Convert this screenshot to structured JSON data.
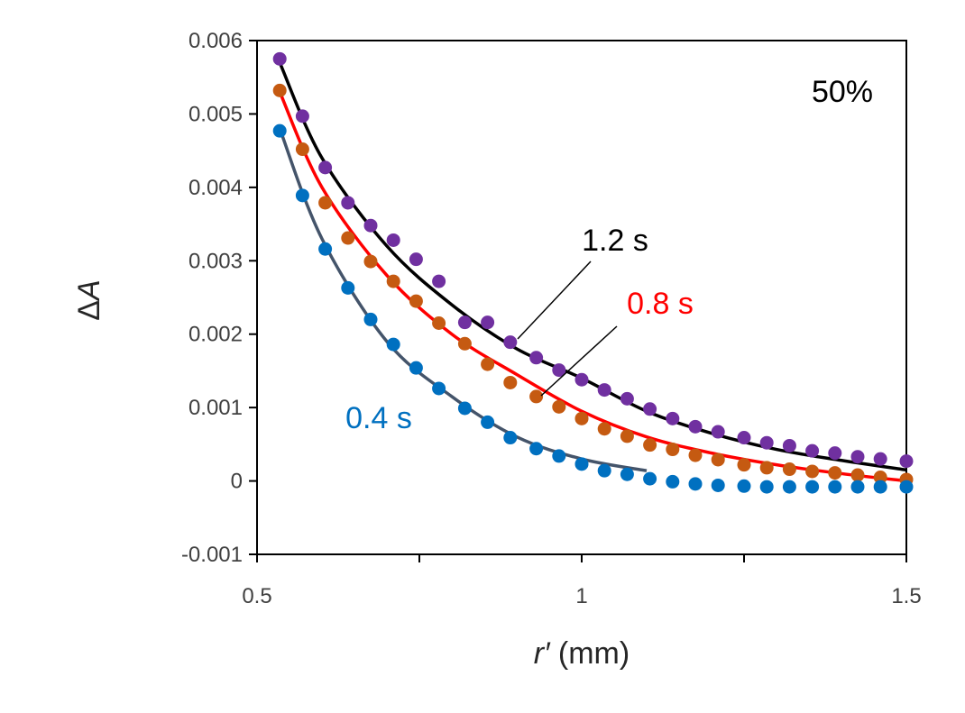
{
  "chart_data": {
    "type": "scatter",
    "title": "",
    "corner_label": "50%",
    "xlabel": {
      "italic": "r′",
      "rest": " (mm)"
    },
    "ylabel": "ΔA",
    "xlim": [
      0.5,
      1.5
    ],
    "ylim": [
      -0.001,
      0.006
    ],
    "x_ticks": [
      0.5,
      1,
      1.5
    ],
    "x_tick_labels": [
      "0.5",
      "1",
      "1.5"
    ],
    "x_minor_ticks": [
      0.75,
      1.25
    ],
    "y_ticks": [
      -0.001,
      0,
      0.001,
      0.002,
      0.003,
      0.004,
      0.005,
      0.006
    ],
    "y_tick_labels": [
      "-0.001",
      "0",
      "0.001",
      "0.002",
      "0.003",
      "0.004",
      "0.005",
      "0.006"
    ],
    "grid": false,
    "series": [
      {
        "name": "1.2 s",
        "marker_color": "#7030A0",
        "fit_color": "#000000",
        "label_color": "#000000",
        "x": [
          0.535,
          0.57,
          0.605,
          0.64,
          0.675,
          0.71,
          0.745,
          0.78,
          0.82,
          0.855,
          0.89,
          0.93,
          0.965,
          1.0,
          1.035,
          1.07,
          1.105,
          1.14,
          1.175,
          1.21,
          1.25,
          1.285,
          1.32,
          1.355,
          1.39,
          1.425,
          1.46,
          1.5
        ],
        "y": [
          0.00575,
          0.00497,
          0.00427,
          0.00379,
          0.00348,
          0.00328,
          0.00302,
          0.00272,
          0.00216,
          0.00216,
          0.00189,
          0.00168,
          0.00151,
          0.00138,
          0.00124,
          0.00112,
          0.00098,
          0.00085,
          0.00074,
          0.00067,
          0.00059,
          0.00052,
          0.00048,
          0.00041,
          0.00038,
          0.00033,
          0.0003,
          0.00027
        ],
        "fit": {
          "x": [
            0.535,
            0.6,
            0.7,
            0.8,
            0.9,
            1.0,
            1.1,
            1.2,
            1.3,
            1.4,
            1.5
          ],
          "y": [
            0.0057,
            0.0044,
            0.0032,
            0.0024,
            0.0018,
            0.0014,
            0.00095,
            0.00065,
            0.00043,
            0.00028,
            0.00015
          ]
        }
      },
      {
        "name": "0.8 s",
        "marker_color": "#C55A11",
        "fit_color": "#FF0000",
        "label_color": "#FF0000",
        "x": [
          0.535,
          0.57,
          0.605,
          0.64,
          0.675,
          0.71,
          0.745,
          0.78,
          0.82,
          0.855,
          0.89,
          0.93,
          0.965,
          1.0,
          1.035,
          1.07,
          1.105,
          1.14,
          1.175,
          1.21,
          1.25,
          1.285,
          1.32,
          1.355,
          1.39,
          1.425,
          1.46,
          1.5
        ],
        "y": [
          0.00532,
          0.00452,
          0.00379,
          0.00331,
          0.00299,
          0.00272,
          0.00245,
          0.00215,
          0.00187,
          0.00159,
          0.00134,
          0.00115,
          0.00101,
          0.00085,
          0.00071,
          0.00061,
          0.00049,
          0.00043,
          0.00035,
          0.00029,
          0.00022,
          0.00018,
          0.00016,
          0.00013,
          0.00011,
          8e-05,
          5e-05,
          2e-05
        ],
        "fit": {
          "x": [
            0.535,
            0.6,
            0.7,
            0.8,
            0.9,
            1.0,
            1.1,
            1.2,
            1.3,
            1.4,
            1.5
          ],
          "y": [
            0.0053,
            0.004,
            0.0028,
            0.002,
            0.00145,
            0.00095,
            0.0006,
            0.00038,
            0.00022,
            0.0001,
            0.0
          ]
        }
      },
      {
        "name": "0.4 s",
        "marker_color": "#0070C0",
        "fit_color": "#44546A",
        "label_color": "#0070C0",
        "x": [
          0.535,
          0.57,
          0.605,
          0.64,
          0.675,
          0.71,
          0.745,
          0.78,
          0.82,
          0.855,
          0.89,
          0.93,
          0.965,
          1.0,
          1.035,
          1.07,
          1.105,
          1.14,
          1.175,
          1.21,
          1.25,
          1.285,
          1.32,
          1.355,
          1.39,
          1.425,
          1.46,
          1.5
        ],
        "y": [
          0.00477,
          0.00389,
          0.00316,
          0.00263,
          0.0022,
          0.00186,
          0.00154,
          0.00126,
          0.00099,
          0.0008,
          0.00059,
          0.00044,
          0.00034,
          0.00023,
          0.00014,
          9e-05,
          3e-05,
          -1e-05,
          -4e-05,
          -6e-05,
          -7e-05,
          -8e-05,
          -8e-05,
          -8e-05,
          -8e-05,
          -8e-05,
          -8e-05,
          -8e-05
        ],
        "fit": {
          "x": [
            0.535,
            0.6,
            0.7,
            0.8,
            0.9,
            1.0,
            1.1
          ],
          "y": [
            0.0048,
            0.0033,
            0.0019,
            0.00115,
            0.0006,
            0.0003,
            0.00014
          ]
        }
      }
    ]
  }
}
